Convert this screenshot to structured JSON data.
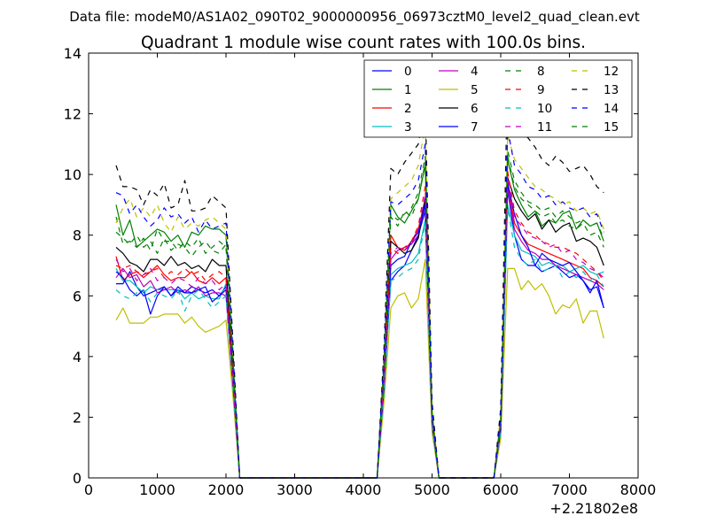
{
  "chart_data": {
    "type": "line",
    "suptitle": "Data file: modeM0/AS1A02_090T02_9000000956_06973cztM0_level2_quad_clean.evt",
    "title": "Quadrant 1 module wise count rates with 100.0s bins.",
    "xlabel": "",
    "ylabel": "",
    "x_offset_label": "+2.21802e8",
    "xlim": [
      0,
      8000
    ],
    "ylim": [
      0,
      14
    ],
    "xticks": [
      0,
      1000,
      2000,
      3000,
      4000,
      5000,
      6000,
      7000,
      8000
    ],
    "yticks": [
      0,
      2,
      4,
      6,
      8,
      10,
      12,
      14
    ],
    "grid": false,
    "legend": {
      "placement": "top-right",
      "columns": 4
    },
    "x": [
      400,
      500,
      600,
      700,
      800,
      900,
      1000,
      1100,
      1200,
      1300,
      1400,
      1500,
      1600,
      1700,
      1800,
      1900,
      2000,
      2100,
      2200,
      4200,
      4300,
      4400,
      4500,
      4600,
      4700,
      4800,
      4900,
      5000,
      5100,
      5900,
      6000,
      6100,
      6200,
      6300,
      6400,
      6500,
      6600,
      6700,
      6800,
      6900,
      7000,
      7100,
      7200,
      7300,
      7400,
      7500
    ],
    "series": [
      {
        "name": "0",
        "color": "#0000ff",
        "dash": "solid",
        "values": [
          6.4,
          6.4,
          6.8,
          6.3,
          6.0,
          6.1,
          6.2,
          6.3,
          6.0,
          6.2,
          6.1,
          6.3,
          6.2,
          6.1,
          6.2,
          6.0,
          6.3,
          3.2,
          0,
          0,
          3.0,
          6.5,
          6.8,
          7.0,
          7.5,
          8.0,
          8.8,
          1.8,
          0,
          0,
          1.5,
          9.5,
          8.0,
          7.2,
          7.0,
          7.0,
          6.8,
          6.9,
          7.0,
          6.8,
          6.6,
          6.7,
          6.5,
          6.2,
          6.3,
          5.6
        ]
      },
      {
        "name": "1",
        "color": "#008000",
        "dash": "solid",
        "values": [
          9.0,
          8.0,
          8.5,
          7.6,
          7.8,
          8.0,
          8.2,
          8.1,
          7.8,
          8.0,
          7.6,
          8.1,
          8.0,
          8.3,
          8.2,
          8.2,
          8.0,
          4.0,
          0,
          0,
          3.8,
          9.0,
          8.6,
          8.4,
          8.8,
          9.2,
          10.3,
          2.2,
          0,
          0,
          2.0,
          10.5,
          9.5,
          9.0,
          8.6,
          8.8,
          8.3,
          8.5,
          8.4,
          8.7,
          8.8,
          8.2,
          8.5,
          8.3,
          8.4,
          7.8
        ]
      },
      {
        "name": "2",
        "color": "#ff0000",
        "dash": "solid",
        "values": [
          7.3,
          6.5,
          6.7,
          6.8,
          6.6,
          6.8,
          7.0,
          6.7,
          6.5,
          6.6,
          6.6,
          6.8,
          6.5,
          6.4,
          6.6,
          6.4,
          6.6,
          3.3,
          0,
          0,
          3.3,
          8.0,
          7.6,
          7.5,
          7.8,
          8.2,
          9.2,
          1.9,
          0,
          0,
          1.7,
          9.8,
          8.4,
          8.0,
          7.7,
          7.6,
          7.5,
          7.4,
          7.3,
          7.2,
          7.1,
          7.0,
          6.9,
          6.6,
          6.5,
          6.3
        ]
      },
      {
        "name": "3",
        "color": "#00bfbf",
        "dash": "solid",
        "values": [
          6.9,
          6.5,
          6.5,
          6.3,
          6.1,
          6.3,
          6.2,
          6.2,
          6.2,
          6.2,
          5.9,
          6.1,
          5.9,
          6.0,
          5.9,
          5.9,
          6.4,
          3.1,
          0,
          0,
          2.9,
          6.7,
          6.9,
          7.0,
          7.1,
          7.4,
          8.5,
          1.7,
          0,
          0,
          1.5,
          9.0,
          8.0,
          7.5,
          7.4,
          7.3,
          7.0,
          7.1,
          7.0,
          7.0,
          6.8,
          6.9,
          7.0,
          6.8,
          6.7,
          6.8
        ]
      },
      {
        "name": "4",
        "color": "#bf00bf",
        "dash": "solid",
        "values": [
          6.6,
          6.9,
          6.6,
          6.7,
          6.3,
          6.5,
          6.1,
          6.2,
          6.3,
          6.1,
          6.2,
          6.1,
          6.3,
          6.0,
          6.1,
          6.1,
          6.0,
          3.0,
          0,
          0,
          3.2,
          7.2,
          7.5,
          7.6,
          7.7,
          8.0,
          9.0,
          1.8,
          0,
          0,
          1.6,
          9.6,
          8.2,
          7.8,
          7.5,
          7.4,
          7.2,
          7.2,
          7.0,
          6.9,
          6.8,
          6.7,
          6.6,
          6.5,
          6.4,
          6.2
        ]
      },
      {
        "name": "5",
        "color": "#bfbf00",
        "dash": "solid",
        "values": [
          5.2,
          5.6,
          5.1,
          5.1,
          5.1,
          5.3,
          5.3,
          5.4,
          5.4,
          5.4,
          5.1,
          5.3,
          5.0,
          4.8,
          4.9,
          5.0,
          5.2,
          2.7,
          0,
          0,
          2.5,
          5.6,
          6.0,
          6.1,
          5.6,
          5.9,
          7.2,
          1.5,
          0,
          0,
          1.3,
          6.9,
          6.9,
          6.2,
          6.5,
          6.2,
          6.4,
          6.0,
          5.4,
          5.7,
          5.6,
          5.9,
          5.1,
          5.5,
          5.5,
          4.6
        ]
      },
      {
        "name": "6",
        "color": "#000000",
        "dash": "solid",
        "values": [
          7.6,
          7.4,
          7.1,
          7.0,
          6.8,
          7.2,
          7.2,
          7.0,
          7.3,
          7.0,
          7.1,
          6.9,
          7.0,
          6.8,
          7.2,
          7.0,
          7.0,
          3.5,
          0,
          0,
          3.4,
          7.8,
          7.6,
          7.4,
          7.5,
          7.9,
          9.2,
          1.9,
          0,
          0,
          1.7,
          9.9,
          9.2,
          8.8,
          8.5,
          8.7,
          8.2,
          8.5,
          8.1,
          8.3,
          8.4,
          7.8,
          7.9,
          7.8,
          7.6,
          7.0
        ]
      },
      {
        "name": "7",
        "color": "#0000ff",
        "dash": "solid",
        "values": [
          6.8,
          6.6,
          6.2,
          6.0,
          6.2,
          5.4,
          6.0,
          6.3,
          6.0,
          6.3,
          6.1,
          6.1,
          6.2,
          6.3,
          5.8,
          6.0,
          6.2,
          3.1,
          0,
          0,
          3.0,
          7.0,
          7.2,
          7.3,
          7.8,
          8.1,
          9.0,
          1.8,
          0,
          0,
          1.6,
          9.7,
          8.7,
          8.0,
          7.6,
          7.0,
          7.4,
          7.2,
          7.1,
          7.0,
          7.1,
          6.8,
          6.5,
          6.1,
          6.5,
          5.6
        ]
      },
      {
        "name": "8",
        "color": "#008000",
        "dash": "dashed",
        "values": [
          8.6,
          7.7,
          7.8,
          7.6,
          7.9,
          7.5,
          8.2,
          7.8,
          7.8,
          7.5,
          7.8,
          7.6,
          7.9,
          7.4,
          7.6,
          7.8,
          7.6,
          3.8,
          0,
          0,
          3.6,
          8.6,
          8.3,
          8.8,
          8.6,
          9.2,
          10.4,
          2.1,
          0,
          0,
          1.9,
          10.8,
          9.8,
          9.4,
          9.1,
          9.0,
          8.8,
          8.9,
          8.6,
          8.8,
          8.6,
          8.4,
          8.5,
          8.3,
          8.4,
          7.9
        ]
      },
      {
        "name": "9",
        "color": "#ff0000",
        "dash": "dashed",
        "values": [
          7.0,
          6.9,
          7.0,
          6.8,
          6.7,
          6.8,
          6.9,
          6.6,
          6.8,
          6.7,
          6.9,
          6.7,
          6.8,
          6.5,
          6.7,
          6.8,
          6.6,
          3.3,
          0,
          0,
          3.4,
          7.6,
          7.4,
          7.6,
          7.8,
          8.3,
          9.6,
          2.0,
          0,
          0,
          1.8,
          10.1,
          8.8,
          8.4,
          8.1,
          8.0,
          7.8,
          7.7,
          7.6,
          7.6,
          7.5,
          7.4,
          7.2,
          7.0,
          6.8,
          6.5
        ]
      },
      {
        "name": "10",
        "color": "#00bfbf",
        "dash": "dashed",
        "values": [
          6.2,
          6.0,
          5.9,
          6.1,
          6.2,
          5.8,
          6.1,
          6.0,
          5.9,
          6.2,
          5.5,
          6.0,
          6.2,
          5.9,
          5.6,
          5.8,
          6.0,
          3.0,
          0,
          0,
          2.8,
          6.5,
          6.6,
          6.8,
          6.9,
          7.2,
          8.4,
          1.7,
          0,
          0,
          1.5,
          8.9,
          7.6,
          7.2,
          7.0,
          7.2,
          6.8,
          6.9,
          7.0,
          6.6,
          6.8,
          6.6,
          6.8,
          6.5,
          6.7,
          6.3
        ]
      },
      {
        "name": "11",
        "color": "#bf00bf",
        "dash": "dashed",
        "values": [
          7.2,
          6.8,
          6.9,
          6.5,
          6.7,
          6.9,
          6.5,
          6.6,
          6.4,
          6.6,
          6.5,
          6.3,
          6.6,
          6.4,
          6.5,
          6.2,
          6.4,
          3.2,
          0,
          0,
          3.2,
          7.4,
          7.6,
          7.5,
          7.7,
          8.2,
          9.3,
          1.9,
          0,
          0,
          1.7,
          9.9,
          8.6,
          8.3,
          8.0,
          7.9,
          7.8,
          7.6,
          7.7,
          7.4,
          7.5,
          7.2,
          7.1,
          6.9,
          6.8,
          6.6
        ]
      },
      {
        "name": "12",
        "color": "#bfbf00",
        "dash": "dashed",
        "values": [
          8.4,
          8.9,
          9.2,
          8.6,
          8.9,
          8.6,
          9.0,
          8.4,
          8.1,
          8.6,
          8.2,
          8.4,
          8.3,
          8.5,
          8.6,
          8.4,
          8.2,
          4.1,
          0,
          0,
          4.0,
          9.2,
          9.4,
          9.6,
          9.8,
          10.3,
          11.6,
          2.3,
          0,
          0,
          2.1,
          11.3,
          10.5,
          10.2,
          9.9,
          9.6,
          9.5,
          9.3,
          9.2,
          9.0,
          9.1,
          8.8,
          8.9,
          8.7,
          8.8,
          8.2
        ]
      },
      {
        "name": "13",
        "color": "#000000",
        "dash": "dashed",
        "values": [
          10.3,
          9.6,
          9.6,
          9.5,
          9.0,
          9.5,
          9.3,
          9.7,
          8.9,
          9.0,
          9.8,
          8.8,
          8.8,
          8.9,
          9.3,
          9.1,
          8.9,
          4.5,
          0,
          0,
          4.3,
          10.2,
          10.0,
          10.4,
          10.7,
          11.0,
          12.4,
          2.5,
          0,
          0,
          2.3,
          13.4,
          11.9,
          11.4,
          11.2,
          10.9,
          10.5,
          10.3,
          10.6,
          10.4,
          10.1,
          10.2,
          10.3,
          10.0,
          9.6,
          9.4
        ]
      },
      {
        "name": "14",
        "color": "#0000ff",
        "dash": "dashed",
        "values": [
          9.4,
          9.3,
          8.7,
          9.0,
          8.6,
          8.3,
          8.5,
          8.9,
          8.6,
          8.7,
          8.4,
          8.6,
          8.1,
          8.5,
          8.2,
          8.3,
          8.4,
          4.2,
          0,
          0,
          4.0,
          9.1,
          9.0,
          9.2,
          9.4,
          9.8,
          11.0,
          2.2,
          0,
          0,
          2.0,
          11.5,
          10.3,
          10.0,
          9.6,
          9.5,
          9.2,
          9.3,
          9.0,
          9.1,
          8.9,
          8.8,
          8.9,
          8.6,
          8.7,
          8.1
        ]
      },
      {
        "name": "15",
        "color": "#008000",
        "dash": "dashed",
        "values": [
          8.1,
          7.9,
          7.7,
          8.0,
          7.6,
          7.8,
          7.4,
          7.9,
          7.5,
          7.7,
          7.6,
          7.3,
          7.6,
          7.8,
          7.5,
          7.4,
          7.7,
          3.8,
          0,
          0,
          3.7,
          8.7,
          8.5,
          8.7,
          8.9,
          9.4,
          10.6,
          2.1,
          0,
          0,
          1.9,
          10.6,
          9.6,
          9.2,
          9.0,
          8.8,
          8.6,
          8.7,
          8.4,
          8.5,
          8.3,
          8.2,
          8.4,
          8.0,
          8.1,
          7.6
        ]
      }
    ]
  }
}
